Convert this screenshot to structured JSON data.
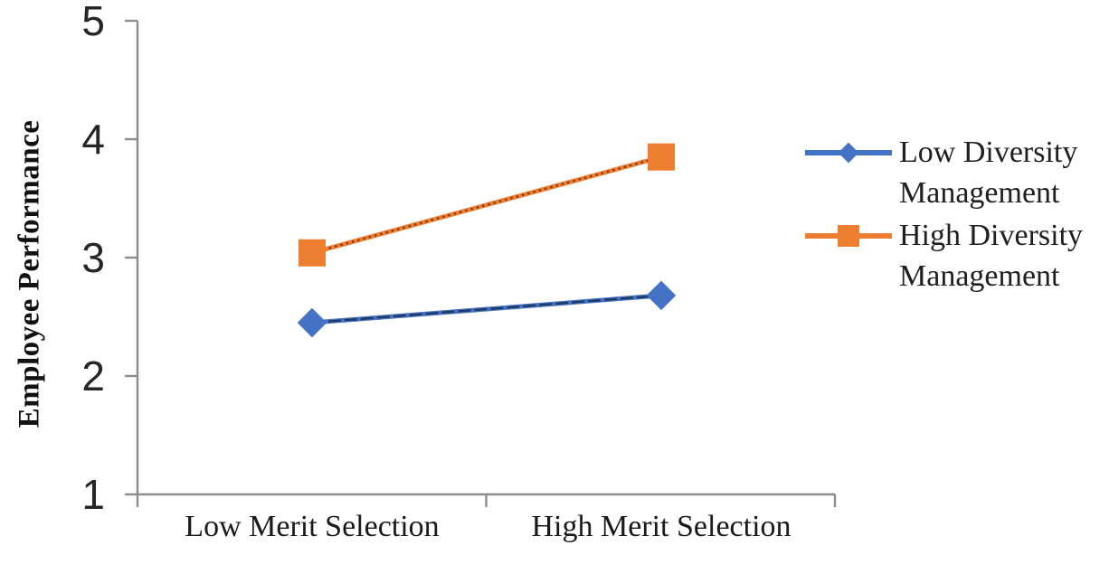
{
  "chart_data": {
    "type": "line",
    "title": "",
    "xlabel": "",
    "ylabel": "Employee Performance",
    "categories": [
      "Low Merit Selection",
      "High Merit Selection"
    ],
    "series": [
      {
        "name": "Low Diversity Management",
        "values": [
          2.45,
          2.68
        ],
        "color": "#4472C4",
        "overlay_color": "#1F3864",
        "overlay_dash": "14 4",
        "marker": "diamond"
      },
      {
        "name": "High Diversity Management",
        "values": [
          3.04,
          3.85
        ],
        "color": "#ED7D31",
        "overlay_color": "#843C0C",
        "overlay_dash": "2.5 4",
        "marker": "square"
      }
    ],
    "yticks": [
      1,
      2,
      3,
      4,
      5
    ],
    "ylim": [
      1,
      5
    ],
    "grid": false,
    "legend_position": "right",
    "axis_color": "#8C8C8C",
    "text_color": "#1A1A1A"
  }
}
